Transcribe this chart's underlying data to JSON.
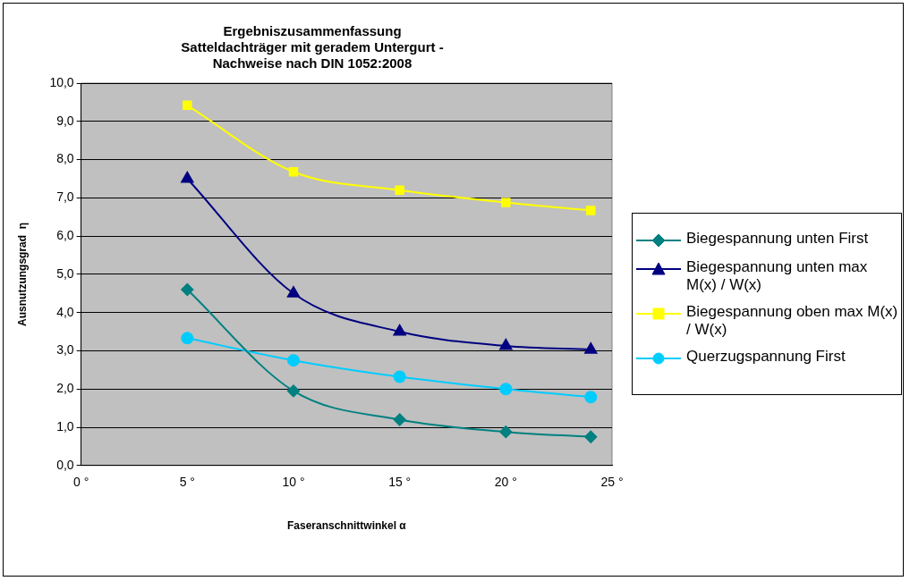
{
  "chart_data": {
    "type": "line",
    "title": [
      "Ergebniszusammenfassung",
      "Satteldachträger mit geradem Untergurt -",
      "Nachweise nach DIN 1052:2008"
    ],
    "xlabel": "Faseranschnittwinkel α",
    "ylabel": "Ausnutzungsgrad  η",
    "x": [
      5,
      10,
      15,
      20,
      24
    ],
    "series": [
      {
        "name": "Biegespannung unten First",
        "color": "#008080",
        "marker": "diamond",
        "values": [
          4.6,
          1.95,
          1.2,
          0.88,
          0.75
        ]
      },
      {
        "name": "Biegespannung unten max M(x) / W(x)",
        "color": "#000080",
        "marker": "triangle",
        "values": [
          7.5,
          4.5,
          3.5,
          3.13,
          3.03
        ]
      },
      {
        "name": "Biegespannung oben max M(x) / W(x)",
        "color": "#ffff00",
        "marker": "square",
        "values": [
          9.42,
          7.68,
          7.2,
          6.88,
          6.67
        ]
      },
      {
        "name": "Querzugspannung First",
        "color": "#00ccff",
        "marker": "circle",
        "values": [
          3.33,
          2.75,
          2.32,
          2.0,
          1.79
        ]
      }
    ],
    "xlim": [
      0,
      25
    ],
    "xticks": [
      {
        "value": 0,
        "label": "0 °"
      },
      {
        "value": 5,
        "label": "5 °"
      },
      {
        "value": 10,
        "label": "10 °"
      },
      {
        "value": 15,
        "label": "15 °"
      },
      {
        "value": 20,
        "label": "20 °"
      },
      {
        "value": 25,
        "label": "25 °"
      }
    ],
    "ylim": [
      0,
      10
    ],
    "yticks": [
      {
        "value": 0,
        "label": "0,0"
      },
      {
        "value": 1,
        "label": "1,0"
      },
      {
        "value": 2,
        "label": "2,0"
      },
      {
        "value": 3,
        "label": "3,0"
      },
      {
        "value": 4,
        "label": "4,0"
      },
      {
        "value": 5,
        "label": "5,0"
      },
      {
        "value": 6,
        "label": "6,0"
      },
      {
        "value": 7,
        "label": "7,0"
      },
      {
        "value": 8,
        "label": "8,0"
      },
      {
        "value": 9,
        "label": "9,0"
      },
      {
        "value": 10,
        "label": "10,0"
      }
    ],
    "grid": "y",
    "legend": "right",
    "line_style": "solid"
  }
}
